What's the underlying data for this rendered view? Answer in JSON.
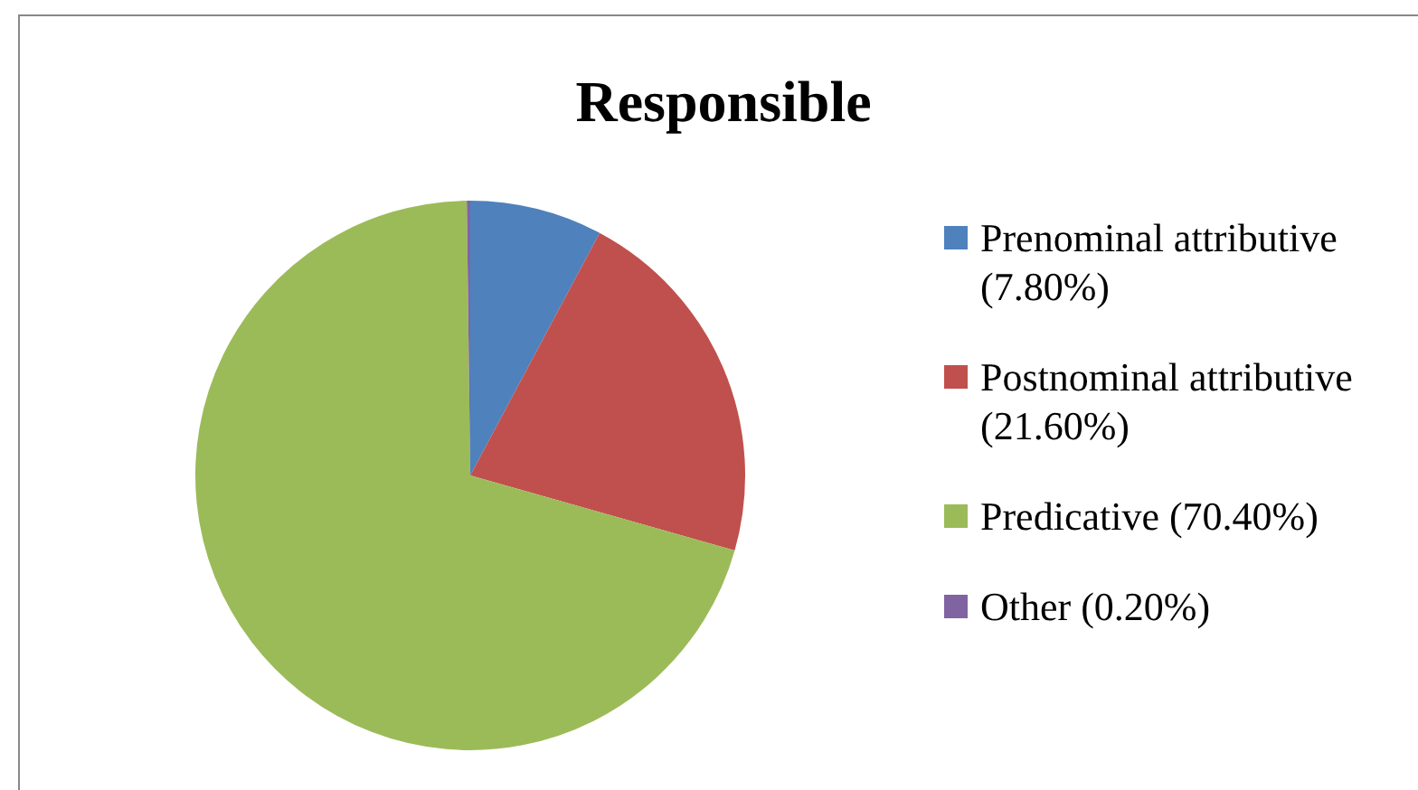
{
  "chart_data": {
    "type": "pie",
    "title": "Responsible",
    "categories": [
      "Prenominal attributive (7.80%)",
      "Postnominal attributive (21.60%)",
      "Predicative (70.40%)",
      "Other (0.20%)"
    ],
    "values": [
      7.8,
      21.6,
      70.4,
      0.2
    ],
    "colors": [
      "#4f81bd",
      "#c0504d",
      "#9bbb59",
      "#8064a2"
    ],
    "legend": "right"
  }
}
